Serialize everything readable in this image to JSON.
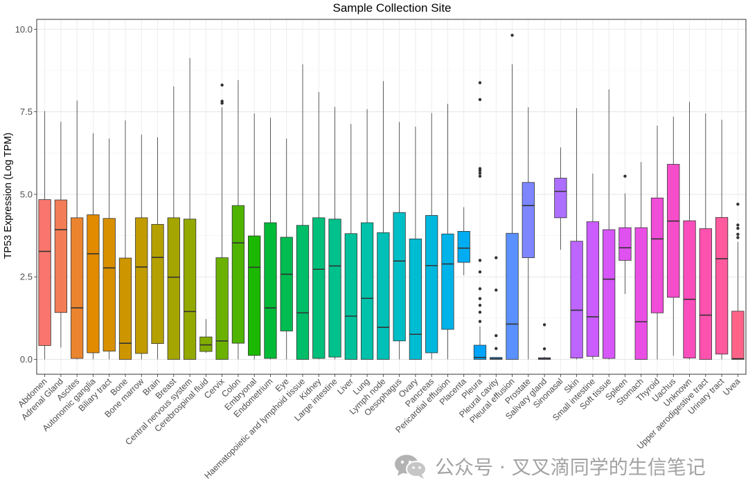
{
  "chart_data": {
    "type": "boxplot",
    "title": "Sample Collection Site",
    "xlabel": "",
    "ylabel": "TP53 Expression (Log TPM)",
    "ylim": [
      -0.45,
      10.3
    ],
    "yticks": [
      0.0,
      2.5,
      5.0,
      7.5,
      10.0
    ],
    "ytick_labels": [
      "0.0",
      "2.5",
      "5.0",
      "7.5",
      "10.0"
    ],
    "grid": true,
    "legend": "none",
    "series": [
      {
        "name": "Abdomen",
        "color": "#F8766D",
        "whisker_low": 0.0,
        "q1": 0.42,
        "median": 3.27,
        "q3": 4.84,
        "whisker_high": 7.52,
        "outliers": []
      },
      {
        "name": "Adrenal Gland",
        "color": "#F27D56",
        "whisker_low": 0.36,
        "q1": 1.42,
        "median": 3.93,
        "q3": 4.83,
        "whisker_high": 7.2,
        "outliers": []
      },
      {
        "name": "Ascites",
        "color": "#EA842E",
        "whisker_low": 0.0,
        "q1": 0.03,
        "median": 1.56,
        "q3": 4.29,
        "whisker_high": 7.84,
        "outliers": []
      },
      {
        "name": "Autonomic ganglia",
        "color": "#E28A00",
        "whisker_low": 0.0,
        "q1": 0.2,
        "median": 3.2,
        "q3": 4.38,
        "whisker_high": 6.85,
        "outliers": []
      },
      {
        "name": "Biliary tract",
        "color": "#D89000",
        "whisker_low": 0.0,
        "q1": 0.25,
        "median": 2.77,
        "q3": 4.27,
        "whisker_high": 6.69,
        "outliers": []
      },
      {
        "name": "Bone",
        "color": "#CD9600",
        "whisker_low": 0.0,
        "q1": 0.0,
        "median": 0.49,
        "q3": 3.07,
        "whisker_high": 7.24,
        "outliers": []
      },
      {
        "name": "Bone marrow",
        "color": "#C19B00",
        "whisker_low": 0.0,
        "q1": 0.18,
        "median": 2.8,
        "q3": 4.29,
        "whisker_high": 6.81,
        "outliers": []
      },
      {
        "name": "Brain",
        "color": "#B4A000",
        "whisker_low": 0.0,
        "q1": 0.48,
        "median": 3.09,
        "q3": 4.09,
        "whisker_high": 6.73,
        "outliers": []
      },
      {
        "name": "Breast",
        "color": "#A5A500",
        "whisker_low": 0.0,
        "q1": 0.0,
        "median": 2.49,
        "q3": 4.29,
        "whisker_high": 8.27,
        "outliers": []
      },
      {
        "name": "Central nervous system",
        "color": "#94A900",
        "whisker_low": 0.0,
        "q1": 0.0,
        "median": 1.45,
        "q3": 4.25,
        "whisker_high": 9.13,
        "outliers": []
      },
      {
        "name": "Cerebrospinal fluid",
        "color": "#81AD00",
        "whisker_low": 0.2,
        "q1": 0.24,
        "median": 0.44,
        "q3": 0.68,
        "whisker_high": 1.22,
        "outliers": []
      },
      {
        "name": "Cervix",
        "color": "#6BB100",
        "whisker_low": 0.0,
        "q1": 0.0,
        "median": 0.56,
        "q3": 3.08,
        "whisker_high": 7.64,
        "outliers": [
          7.76,
          7.82,
          8.31
        ]
      },
      {
        "name": "Colon",
        "color": "#4EB400",
        "whisker_low": 0.0,
        "q1": 0.49,
        "median": 3.53,
        "q3": 4.66,
        "whisker_high": 8.46,
        "outliers": []
      },
      {
        "name": "Embryonal",
        "color": "#1BB800",
        "whisker_low": 0.0,
        "q1": 0.12,
        "median": 2.79,
        "q3": 3.74,
        "whisker_high": 7.45,
        "outliers": []
      },
      {
        "name": "Endometrium",
        "color": "#00BA38",
        "whisker_low": 0.0,
        "q1": 0.03,
        "median": 1.56,
        "q3": 4.14,
        "whisker_high": 7.32,
        "outliers": []
      },
      {
        "name": "Eye",
        "color": "#00BC51",
        "whisker_low": 0.0,
        "q1": 0.86,
        "median": 2.58,
        "q3": 3.7,
        "whisker_high": 6.69,
        "outliers": []
      },
      {
        "name": "Haematopoietic and lymphoid tissue",
        "color": "#00BE67",
        "whisker_low": 0.0,
        "q1": 0.0,
        "median": 1.41,
        "q3": 4.06,
        "whisker_high": 8.94,
        "outliers": []
      },
      {
        "name": "Kidney",
        "color": "#00BF7A",
        "whisker_low": 0.0,
        "q1": 0.03,
        "median": 2.73,
        "q3": 4.29,
        "whisker_high": 8.1,
        "outliers": []
      },
      {
        "name": "Large intestine",
        "color": "#00C08C",
        "whisker_low": 0.0,
        "q1": 0.07,
        "median": 2.83,
        "q3": 4.25,
        "whisker_high": 7.65,
        "outliers": []
      },
      {
        "name": "Liver",
        "color": "#00C19C",
        "whisker_low": 0.0,
        "q1": 0.0,
        "median": 1.31,
        "q3": 3.81,
        "whisker_high": 7.13,
        "outliers": []
      },
      {
        "name": "Lung",
        "color": "#00C1AA",
        "whisker_low": 0.0,
        "q1": 0.0,
        "median": 1.85,
        "q3": 4.14,
        "whisker_high": 7.58,
        "outliers": []
      },
      {
        "name": "Lymph node",
        "color": "#00C0B8",
        "whisker_low": 0.0,
        "q1": 0.0,
        "median": 0.97,
        "q3": 3.84,
        "whisker_high": 8.43,
        "outliers": []
      },
      {
        "name": "Oesophagus",
        "color": "#00BEC5",
        "whisker_low": 0.0,
        "q1": 0.56,
        "median": 2.98,
        "q3": 4.45,
        "whisker_high": 7.19,
        "outliers": []
      },
      {
        "name": "Ovary",
        "color": "#00BCD2",
        "whisker_low": 0.0,
        "q1": 0.0,
        "median": 0.76,
        "q3": 3.65,
        "whisker_high": 7.05,
        "outliers": []
      },
      {
        "name": "Pancreas",
        "color": "#00B8DE",
        "whisker_low": 0.0,
        "q1": 0.2,
        "median": 2.84,
        "q3": 4.36,
        "whisker_high": 7.46,
        "outliers": []
      },
      {
        "name": "Pericardial effusion",
        "color": "#00B3E9",
        "whisker_low": 0.0,
        "q1": 0.91,
        "median": 2.89,
        "q3": 3.8,
        "whisker_high": 7.74,
        "outliers": []
      },
      {
        "name": "Placenta",
        "color": "#00ADF2",
        "whisker_low": 2.55,
        "q1": 2.94,
        "median": 3.37,
        "q3": 3.88,
        "whisker_high": 4.61,
        "outliers": []
      },
      {
        "name": "Pleura",
        "color": "#00A5FB",
        "whisker_low": 0.0,
        "q1": 0.0,
        "median": 0.06,
        "q3": 0.43,
        "whisker_high": 1.0,
        "outliers": [
          1.15,
          1.43,
          1.64,
          1.84,
          2.14,
          2.65,
          3.0,
          5.55,
          5.64,
          5.72,
          5.78,
          7.87,
          8.38
        ]
      },
      {
        "name": "Pleural cavity",
        "color": "#139BFF",
        "whisker_low": 0.0,
        "q1": 0.0,
        "median": 0.02,
        "q3": 0.06,
        "whisker_high": 0.06,
        "outliers": [
          0.33,
          0.72,
          2.1,
          3.08
        ]
      },
      {
        "name": "Pleural effusion",
        "color": "#5A91FF",
        "whisker_low": 0.0,
        "q1": 0.0,
        "median": 1.07,
        "q3": 3.82,
        "whisker_high": 8.94,
        "outliers": [
          9.82
        ]
      },
      {
        "name": "Prostate",
        "color": "#7D86FF",
        "whisker_low": 0.0,
        "q1": 3.08,
        "median": 4.66,
        "q3": 5.36,
        "whisker_high": 7.64,
        "outliers": []
      },
      {
        "name": "Salivary gland",
        "color": "#987AFF",
        "whisker_low": 0.0,
        "q1": 0.0,
        "median": 0.02,
        "q3": 0.05,
        "whisker_high": 0.08,
        "outliers": [
          0.32,
          1.05
        ]
      },
      {
        "name": "Sinonasal",
        "color": "#AC6FFF",
        "whisker_low": 3.32,
        "q1": 4.29,
        "median": 5.09,
        "q3": 5.49,
        "whisker_high": 6.42,
        "outliers": []
      },
      {
        "name": "Skin",
        "color": "#BD65FF",
        "whisker_low": 0.0,
        "q1": 0.04,
        "median": 1.49,
        "q3": 3.58,
        "whisker_high": 7.61,
        "outliers": []
      },
      {
        "name": "Small intestine",
        "color": "#CB5DFF",
        "whisker_low": 0.0,
        "q1": 0.09,
        "median": 1.29,
        "q3": 4.17,
        "whisker_high": 5.63,
        "outliers": []
      },
      {
        "name": "Soft tissue",
        "color": "#D656FA",
        "whisker_low": 0.0,
        "q1": 0.03,
        "median": 2.43,
        "q3": 3.93,
        "whisker_high": 8.18,
        "outliers": []
      },
      {
        "name": "Spleen",
        "color": "#E052F0",
        "whisker_low": 1.98,
        "q1": 3.0,
        "median": 3.38,
        "q3": 3.99,
        "whisker_high": 5.03,
        "outliers": [
          5.55
        ]
      },
      {
        "name": "Stomach",
        "color": "#EA4FE5",
        "whisker_low": 0.0,
        "q1": 0.0,
        "median": 1.14,
        "q3": 3.99,
        "whisker_high": 5.98,
        "outliers": []
      },
      {
        "name": "Thyroid",
        "color": "#F04DD8",
        "whisker_low": 0.0,
        "q1": 1.41,
        "median": 3.65,
        "q3": 4.89,
        "whisker_high": 7.08,
        "outliers": []
      },
      {
        "name": "Uachus",
        "color": "#F64DCB",
        "whisker_low": 0.11,
        "q1": 1.88,
        "median": 4.19,
        "q3": 5.91,
        "whisker_high": 7.35,
        "outliers": []
      },
      {
        "name": "Unknown",
        "color": "#FB4EBD",
        "whisker_low": 0.0,
        "q1": 0.04,
        "median": 1.82,
        "q3": 4.2,
        "whisker_high": 7.8,
        "outliers": []
      },
      {
        "name": "Upper aerodigestive tract",
        "color": "#FF52AE",
        "whisker_low": 0.0,
        "q1": 0.0,
        "median": 1.34,
        "q3": 3.96,
        "whisker_high": 7.45,
        "outliers": []
      },
      {
        "name": "Urinary tract",
        "color": "#FF5A9E",
        "whisker_low": 0.0,
        "q1": 0.16,
        "median": 3.05,
        "q3": 4.3,
        "whisker_high": 7.26,
        "outliers": []
      },
      {
        "name": "Uvea",
        "color": "#FF6388",
        "whisker_low": 0.0,
        "q1": 0.0,
        "median": 0.02,
        "q3": 1.46,
        "whisker_high": 3.56,
        "outliers": [
          3.69,
          3.79,
          3.97,
          4.07,
          4.7
        ]
      }
    ]
  },
  "watermark": {
    "text": "公众号 · 叉叉滴同学的生信笔记",
    "icon": "wechat-icon",
    "color": "#a3a3a3"
  }
}
